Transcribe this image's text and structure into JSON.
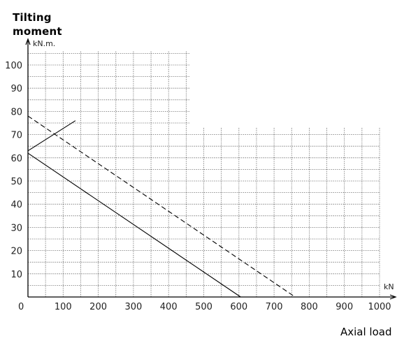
{
  "chart_data": {
    "type": "line",
    "title_lines": [
      "Tilting",
      "moment"
    ],
    "ylabel_unit": "kN.m.",
    "xlabel": "Axial load",
    "xlabel_unit": "kN",
    "xlim": [
      0,
      1000
    ],
    "ylim": [
      0,
      100
    ],
    "x_ticks": [
      0,
      100,
      200,
      300,
      400,
      500,
      600,
      700,
      800,
      900,
      1000
    ],
    "x_tick_labels": [
      "0",
      "100",
      "200",
      "300",
      "400",
      "500",
      "600",
      "700",
      "800",
      "900",
      "1000"
    ],
    "y_ticks": [
      10,
      20,
      30,
      40,
      50,
      60,
      70,
      80,
      90,
      100
    ],
    "y_tick_labels": [
      "10",
      "20",
      "30",
      "40",
      "50",
      "60",
      "70",
      "80",
      "90",
      "100"
    ],
    "grid": true,
    "grid_style": "dotted",
    "series": [
      {
        "style": "solid",
        "x": [
          0,
          605
        ],
        "y": [
          62,
          0
        ]
      },
      {
        "style": "dashed",
        "x": [
          0,
          760
        ],
        "y": [
          78,
          0
        ]
      },
      {
        "style": "solid",
        "x": [
          0,
          135
        ],
        "y": [
          63,
          76
        ]
      }
    ]
  }
}
